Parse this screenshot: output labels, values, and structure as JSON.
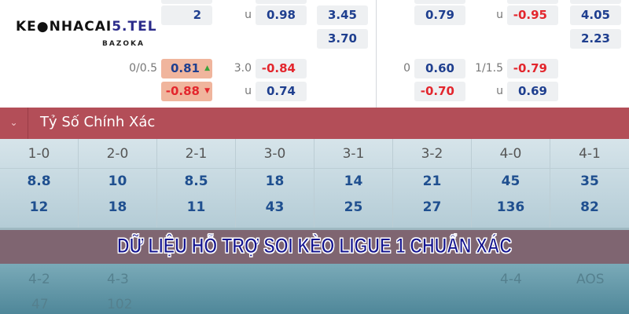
{
  "logo": {
    "text_a": "KE",
    "text_b": "NHACAI",
    "text_c": "5.TEL",
    "sub": "BAZOKA"
  },
  "odds": {
    "r1": {
      "partial": "2",
      "u1": "u",
      "a": "0.98",
      "b": "3.45",
      "c": "0.79",
      "u2": "u",
      "d": "-0.95",
      "e": "4.05"
    },
    "r2": {
      "b": "3.70",
      "e": "2.23"
    },
    "r3": {
      "hcap": "0/0.5",
      "a": "0.81",
      "a_arrow": "▲",
      "ou": "3.0",
      "b": "-0.84",
      "hcap2": "0",
      "c": "0.60",
      "ou2": "1/1.5",
      "d": "-0.79"
    },
    "r4": {
      "a": "-0.88",
      "a_arrow": "▼",
      "u1": "u",
      "b": "0.74",
      "c": "-0.70",
      "u2": "u",
      "d": "0.69"
    }
  },
  "section": {
    "title": "Tỷ Số Chính Xác",
    "chevron": "⌄"
  },
  "scores": [
    {
      "h": "1-0",
      "v1": "8.8",
      "v2": "12"
    },
    {
      "h": "2-0",
      "v1": "10",
      "v2": "18"
    },
    {
      "h": "2-1",
      "v1": "8.5",
      "v2": "11"
    },
    {
      "h": "3-0",
      "v1": "18",
      "v2": "43"
    },
    {
      "h": "3-1",
      "v1": "14",
      "v2": "25"
    },
    {
      "h": "3-2",
      "v1": "21",
      "v2": "27"
    },
    {
      "h": "4-0",
      "v1": "45",
      "v2": "136"
    },
    {
      "h": "4-1",
      "v1": "35",
      "v2": "82"
    }
  ],
  "faded": {
    "h1": "4-2",
    "h2": "4-3",
    "h7": "4-4",
    "h8": "AOS",
    "v1": "47",
    "v2": "102"
  },
  "banner": "DỮ LIỆU HỖ TRỢ SOI KÈO LIGUE 1 CHUẨN XÁC"
}
